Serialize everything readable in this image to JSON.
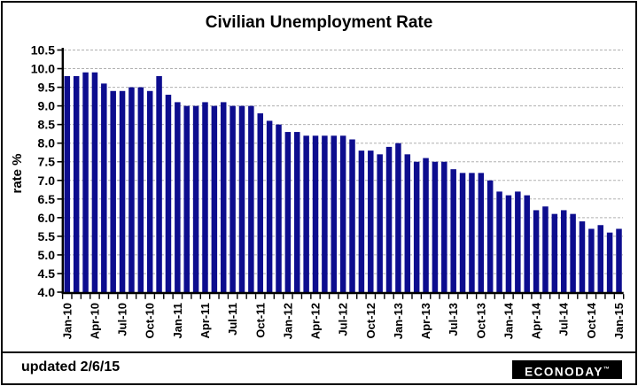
{
  "title": "Civilian Unemployment Rate",
  "footer": {
    "updated": "updated 2/6/15",
    "brand": "ECONODAY",
    "brand_tm": "™"
  },
  "colors": {
    "bar": "#0d0d8e",
    "grid": "#b0b0b0",
    "axis": "#000000",
    "text": "#000000",
    "background": "#ffffff",
    "logo_bg": "#000000",
    "logo_text": "#ffffff"
  },
  "chart_data": {
    "type": "bar",
    "title": "Civilian Unemployment Rate",
    "xlabel": "",
    "ylabel": "rate %",
    "ylim": [
      4.0,
      10.5
    ],
    "ytick_step": 0.5,
    "yticks": [
      "10.5",
      "10.0",
      "9.5",
      "9.0",
      "8.5",
      "8.0",
      "7.5",
      "7.0",
      "6.5",
      "6.0",
      "5.5",
      "5.0",
      "4.5",
      "4.0"
    ],
    "grid": "dashed-horizontal",
    "legend": "none",
    "label_every": 3,
    "xtick_labels": [
      "Jan-10",
      "Apr-10",
      "Jul-10",
      "Oct-10",
      "Jan-11",
      "Apr-11",
      "Jul-11",
      "Oct-11",
      "Jan-12",
      "Apr-12",
      "Jul-12",
      "Oct-12",
      "Jan-13",
      "Apr-13",
      "Jul-13",
      "Oct-13",
      "Jan-14",
      "Apr-14",
      "Jul-14",
      "Oct-14",
      "Jan-15"
    ],
    "categories": [
      "Jan-10",
      "Feb-10",
      "Mar-10",
      "Apr-10",
      "May-10",
      "Jun-10",
      "Jul-10",
      "Aug-10",
      "Sep-10",
      "Oct-10",
      "Nov-10",
      "Dec-10",
      "Jan-11",
      "Feb-11",
      "Mar-11",
      "Apr-11",
      "May-11",
      "Jun-11",
      "Jul-11",
      "Aug-11",
      "Sep-11",
      "Oct-11",
      "Nov-11",
      "Dec-11",
      "Jan-12",
      "Feb-12",
      "Mar-12",
      "Apr-12",
      "May-12",
      "Jun-12",
      "Jul-12",
      "Aug-12",
      "Sep-12",
      "Oct-12",
      "Nov-12",
      "Dec-12",
      "Jan-13",
      "Feb-13",
      "Mar-13",
      "Apr-13",
      "May-13",
      "Jun-13",
      "Jul-13",
      "Aug-13",
      "Sep-13",
      "Oct-13",
      "Nov-13",
      "Dec-13",
      "Jan-14",
      "Feb-14",
      "Mar-14",
      "Apr-14",
      "May-14",
      "Jun-14",
      "Jul-14",
      "Aug-14",
      "Sep-14",
      "Oct-14",
      "Nov-14",
      "Dec-14",
      "Jan-15"
    ],
    "values": [
      9.8,
      9.8,
      9.9,
      9.9,
      9.6,
      9.4,
      9.4,
      9.5,
      9.5,
      9.4,
      9.8,
      9.3,
      9.1,
      9.0,
      9.0,
      9.1,
      9.0,
      9.1,
      9.0,
      9.0,
      9.0,
      8.8,
      8.6,
      8.5,
      8.3,
      8.3,
      8.2,
      8.2,
      8.2,
      8.2,
      8.2,
      8.1,
      7.8,
      7.8,
      7.7,
      7.9,
      8.0,
      7.7,
      7.5,
      7.6,
      7.5,
      7.5,
      7.3,
      7.2,
      7.2,
      7.2,
      7.0,
      6.7,
      6.6,
      6.7,
      6.6,
      6.2,
      6.3,
      6.1,
      6.2,
      6.1,
      5.9,
      5.7,
      5.8,
      5.6,
      5.7
    ]
  }
}
